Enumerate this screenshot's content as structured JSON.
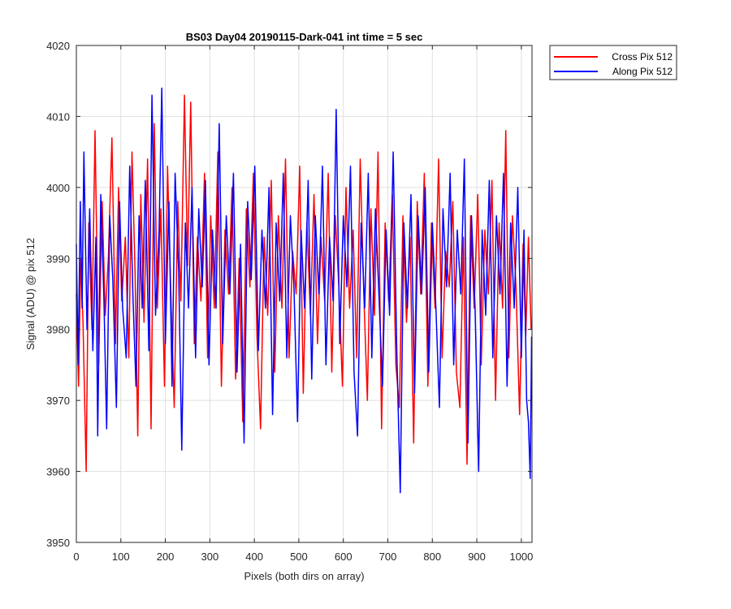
{
  "chart_data": {
    "type": "line",
    "title": "BS03 Day04 20190115-Dark-041 int time = 5 sec",
    "xlabel": "Pixels (both dirs on array)",
    "ylabel": "Signal (ADU) @ pix 512",
    "xlim": [
      0,
      1024
    ],
    "ylim": [
      3950,
      4020
    ],
    "x_ticks": [
      "0",
      "100",
      "200",
      "300",
      "400",
      "500",
      "600",
      "700",
      "800",
      "900",
      "1000"
    ],
    "y_ticks": [
      "3950",
      "3960",
      "3970",
      "3980",
      "3990",
      "4000",
      "4010",
      "4020"
    ],
    "grid": true,
    "legend_position": "outside-top-right",
    "series": [
      {
        "name": "Cross Pix 512",
        "color": "#ff0000",
        "points": [
          [
            0,
            3985
          ],
          [
            5,
            3972
          ],
          [
            10,
            3990
          ],
          [
            15,
            3981
          ],
          [
            22,
            3960
          ],
          [
            28,
            3995
          ],
          [
            35,
            3980
          ],
          [
            42,
            4008
          ],
          [
            50,
            3975
          ],
          [
            58,
            3998
          ],
          [
            65,
            3982
          ],
          [
            72,
            3990
          ],
          [
            80,
            4007
          ],
          [
            88,
            3978
          ],
          [
            95,
            4000
          ],
          [
            102,
            3984
          ],
          [
            110,
            3993
          ],
          [
            118,
            3976
          ],
          [
            125,
            4005
          ],
          [
            132,
            3988
          ],
          [
            138,
            3965
          ],
          [
            145,
            3999
          ],
          [
            152,
            3981
          ],
          [
            160,
            4004
          ],
          [
            168,
            3966
          ],
          [
            175,
            4009
          ],
          [
            182,
            3983
          ],
          [
            190,
            3997
          ],
          [
            198,
            3972
          ],
          [
            205,
            4003
          ],
          [
            212,
            3986
          ],
          [
            220,
            3969
          ],
          [
            228,
            3998
          ],
          [
            235,
            3984
          ],
          [
            243,
            4013
          ],
          [
            250,
            3989
          ],
          [
            257,
            4012
          ],
          [
            265,
            3978
          ],
          [
            272,
            3993
          ],
          [
            280,
            3984
          ],
          [
            288,
            4002
          ],
          [
            295,
            3976
          ],
          [
            302,
            3996
          ],
          [
            310,
            3983
          ],
          [
            318,
            4005
          ],
          [
            326,
            3972
          ],
          [
            334,
            3994
          ],
          [
            342,
            3985
          ],
          [
            350,
            4000
          ],
          [
            358,
            3973
          ],
          [
            366,
            3990
          ],
          [
            374,
            3967
          ],
          [
            382,
            3997
          ],
          [
            390,
            3986
          ],
          [
            398,
            4002
          ],
          [
            406,
            3979
          ],
          [
            414,
            3966
          ],
          [
            422,
            3993
          ],
          [
            430,
            3982
          ],
          [
            438,
            4001
          ],
          [
            446,
            3974
          ],
          [
            454,
            3996
          ],
          [
            462,
            3983
          ],
          [
            470,
            4004
          ],
          [
            478,
            3976
          ],
          [
            486,
            3991
          ],
          [
            494,
            3985
          ],
          [
            502,
            4003
          ],
          [
            510,
            3971
          ],
          [
            518,
            3995
          ],
          [
            526,
            3982
          ],
          [
            534,
            3999
          ],
          [
            542,
            3978
          ],
          [
            550,
            3993
          ],
          [
            558,
            3984
          ],
          [
            566,
            4002
          ],
          [
            574,
            3974
          ],
          [
            582,
            3996
          ],
          [
            590,
            3986
          ],
          [
            598,
            3972
          ],
          [
            606,
            4000
          ],
          [
            614,
            3983
          ],
          [
            622,
            3994
          ],
          [
            630,
            3976
          ],
          [
            638,
            4004
          ],
          [
            646,
            3985
          ],
          [
            654,
            3970
          ],
          [
            662,
            3997
          ],
          [
            670,
            3982
          ],
          [
            678,
            4005
          ],
          [
            686,
            3966
          ],
          [
            694,
            3995
          ],
          [
            702,
            3984
          ],
          [
            710,
            3999
          ],
          [
            718,
            3975
          ],
          [
            726,
            3969
          ],
          [
            734,
            3996
          ],
          [
            742,
            3981
          ],
          [
            750,
            3993
          ],
          [
            758,
            3964
          ],
          [
            766,
            3998
          ],
          [
            774,
            3985
          ],
          [
            782,
            4002
          ],
          [
            790,
            3972
          ],
          [
            798,
            3995
          ],
          [
            806,
            3983
          ],
          [
            814,
            4004
          ],
          [
            822,
            3976
          ],
          [
            830,
            3991
          ],
          [
            838,
            3986
          ],
          [
            846,
            3998
          ],
          [
            854,
            3974
          ],
          [
            862,
            3969
          ],
          [
            870,
            3993
          ],
          [
            878,
            3961
          ],
          [
            886,
            3996
          ],
          [
            894,
            3983
          ],
          [
            902,
            3999
          ],
          [
            910,
            3975
          ],
          [
            918,
            3994
          ],
          [
            926,
            3985
          ],
          [
            934,
            4001
          ],
          [
            942,
            3970
          ],
          [
            950,
            3995
          ],
          [
            958,
            3983
          ],
          [
            965,
            4008
          ],
          [
            972,
            3976
          ],
          [
            980,
            3996
          ],
          [
            988,
            3986
          ],
          [
            996,
            3968
          ],
          [
            1004,
            3992
          ],
          [
            1010,
            3979
          ],
          [
            1016,
            3993
          ],
          [
            1022,
            3980
          ]
        ]
      },
      {
        "name": "Along Pix 512",
        "color": "#0000ff",
        "points": [
          [
            0,
            3992
          ],
          [
            4,
            3975
          ],
          [
            9,
            3998
          ],
          [
            13,
            3983
          ],
          [
            17,
            4005
          ],
          [
            24,
            3980
          ],
          [
            30,
            3997
          ],
          [
            37,
            3977
          ],
          [
            44,
            3993
          ],
          [
            48,
            3965
          ],
          [
            55,
            3999
          ],
          [
            62,
            3984
          ],
          [
            68,
            3966
          ],
          [
            75,
            3996
          ],
          [
            82,
            3987
          ],
          [
            90,
            3969
          ],
          [
            97,
            3998
          ],
          [
            104,
            3983
          ],
          [
            112,
            3976
          ],
          [
            120,
            4003
          ],
          [
            127,
            3985
          ],
          [
            134,
            3972
          ],
          [
            141,
            3996
          ],
          [
            148,
            3983
          ],
          [
            155,
            4001
          ],
          [
            163,
            3977
          ],
          [
            170,
            4013
          ],
          [
            178,
            3982
          ],
          [
            186,
            3994
          ],
          [
            192,
            4014
          ],
          [
            200,
            3978
          ],
          [
            208,
            3998
          ],
          [
            215,
            3972
          ],
          [
            222,
            4002
          ],
          [
            230,
            3988
          ],
          [
            237,
            3963
          ],
          [
            245,
            3995
          ],
          [
            252,
            3983
          ],
          [
            260,
            4000
          ],
          [
            268,
            3976
          ],
          [
            275,
            3997
          ],
          [
            283,
            3986
          ],
          [
            290,
            4001
          ],
          [
            298,
            3975
          ],
          [
            306,
            3994
          ],
          [
            314,
            3983
          ],
          [
            321,
            4009
          ],
          [
            329,
            3978
          ],
          [
            337,
            3996
          ],
          [
            345,
            3985
          ],
          [
            353,
            4002
          ],
          [
            361,
            3974
          ],
          [
            369,
            3992
          ],
          [
            377,
            3964
          ],
          [
            385,
            3998
          ],
          [
            393,
            3987
          ],
          [
            401,
            4003
          ],
          [
            409,
            3977
          ],
          [
            417,
            3994
          ],
          [
            425,
            3983
          ],
          [
            433,
            4000
          ],
          [
            441,
            3968
          ],
          [
            449,
            3995
          ],
          [
            457,
            3984
          ],
          [
            465,
            4002
          ],
          [
            473,
            3976
          ],
          [
            481,
            3996
          ],
          [
            489,
            3986
          ],
          [
            497,
            3967
          ],
          [
            505,
            3994
          ],
          [
            513,
            3983
          ],
          [
            521,
            4001
          ],
          [
            529,
            3973
          ],
          [
            537,
            3996
          ],
          [
            545,
            3985
          ],
          [
            553,
            4003
          ],
          [
            561,
            3975
          ],
          [
            569,
            3993
          ],
          [
            577,
            3984
          ],
          [
            584,
            4011
          ],
          [
            592,
            3978
          ],
          [
            600,
            3996
          ],
          [
            608,
            3986
          ],
          [
            616,
            4003
          ],
          [
            624,
            3974
          ],
          [
            632,
            3965
          ],
          [
            640,
            3995
          ],
          [
            648,
            3983
          ],
          [
            656,
            4002
          ],
          [
            664,
            3976
          ],
          [
            672,
            3997
          ],
          [
            680,
            3985
          ],
          [
            688,
            3972
          ],
          [
            696,
            3994
          ],
          [
            704,
            3982
          ],
          [
            712,
            4005
          ],
          [
            720,
            3977
          ],
          [
            728,
            3957
          ],
          [
            736,
            3995
          ],
          [
            744,
            3983
          ],
          [
            752,
            3999
          ],
          [
            760,
            3971
          ],
          [
            768,
            3996
          ],
          [
            776,
            3985
          ],
          [
            784,
            4000
          ],
          [
            792,
            3974
          ],
          [
            800,
            3995
          ],
          [
            808,
            3983
          ],
          [
            816,
            3969
          ],
          [
            824,
            3997
          ],
          [
            832,
            3986
          ],
          [
            840,
            4002
          ],
          [
            848,
            3975
          ],
          [
            856,
            3994
          ],
          [
            864,
            3985
          ],
          [
            872,
            4004
          ],
          [
            880,
            3964
          ],
          [
            888,
            3996
          ],
          [
            896,
            3983
          ],
          [
            904,
            3960
          ],
          [
            912,
            3994
          ],
          [
            920,
            3982
          ],
          [
            928,
            4001
          ],
          [
            936,
            3976
          ],
          [
            944,
            3996
          ],
          [
            952,
            3985
          ],
          [
            960,
            4002
          ],
          [
            968,
            3972
          ],
          [
            976,
            3995
          ],
          [
            984,
            3983
          ],
          [
            992,
            4000
          ],
          [
            1000,
            3976
          ],
          [
            1006,
            3994
          ],
          [
            1012,
            3970
          ],
          [
            1016,
            3967
          ],
          [
            1020,
            3959
          ],
          [
            1023,
            3979
          ]
        ]
      }
    ]
  }
}
